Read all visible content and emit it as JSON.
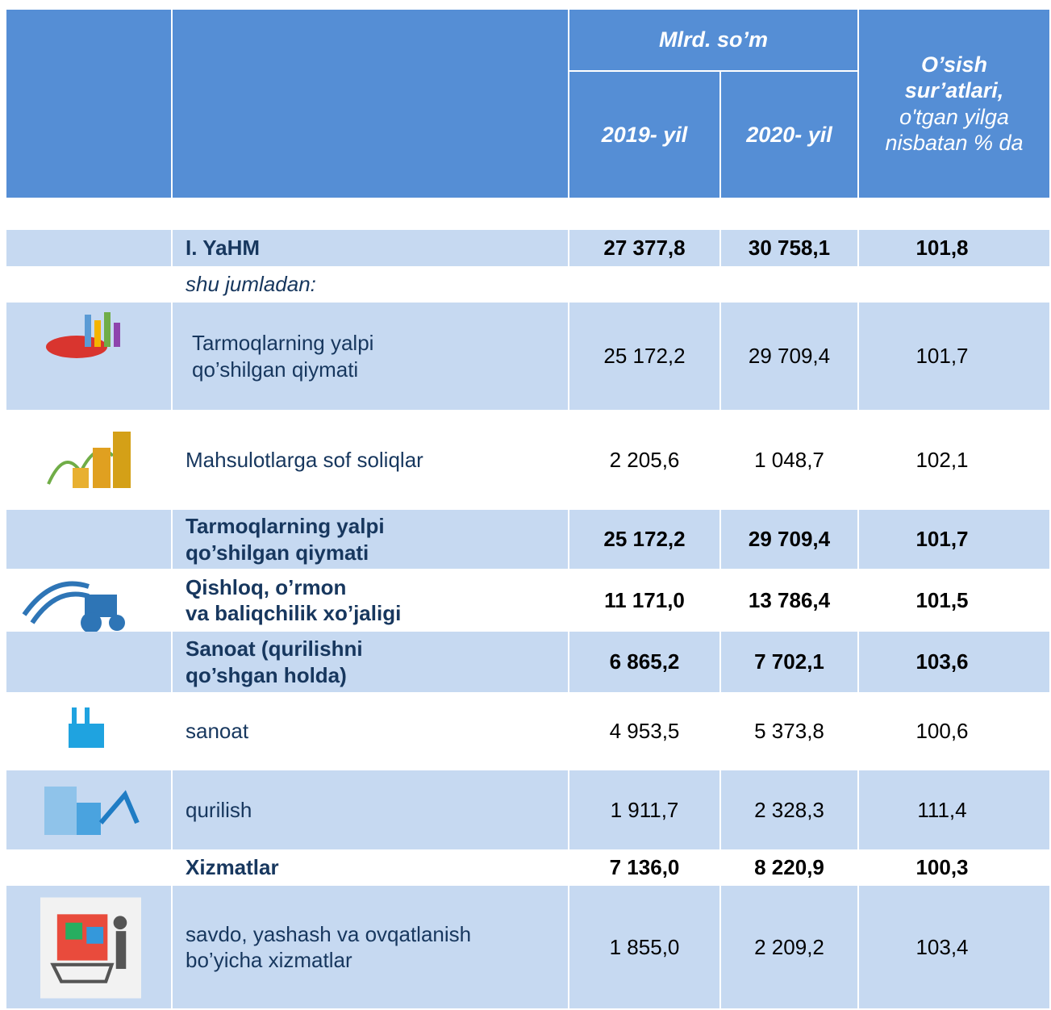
{
  "header": {
    "group": "Mlrd. so’m",
    "year1": "2019- yil",
    "year2": "2020- yil",
    "growth_title": "O’sish sur’atlari,",
    "growth_subtitle": "o'tgan yilga nisbatan % da"
  },
  "rows": [
    {
      "label": "I. YaHM",
      "v2019": "27 377,8",
      "v2020": "30 758,1",
      "growth": "101,8"
    },
    {
      "label": "shu jumladan:"
    },
    {
      "label": "Tarmoqlarning yalpi\nqo’shilgan qiymati",
      "v2019": "25 172,2",
      "v2020": "29 709,4",
      "growth": "101,7"
    },
    {
      "label": "Mahsulotlarga sof soliqlar",
      "v2019": "2 205,6",
      "v2020": "1 048,7",
      "growth": "102,1"
    },
    {
      "label": "Tarmoqlarning yalpi\nqo’shilgan qiymati",
      "v2019": "25 172,2",
      "v2020": "29 709,4",
      "growth": "101,7"
    },
    {
      "label": "Qishloq, o’rmon\nva baliqchilik xo’jaligi",
      "v2019": "11 171,0",
      "v2020": "13 786,4",
      "growth": "101,5"
    },
    {
      "label": "Sanoat (qurilishni\nqo’shgan holda)",
      "v2019": "6 865,2",
      "v2020": "7 702,1",
      "growth": "103,6"
    },
    {
      "label": "sanoat",
      "v2019": "4 953,5",
      "v2020": "5 373,8",
      "growth": "100,6"
    },
    {
      "label": "qurilish",
      "v2019": "1 911,7",
      "v2020": "2 328,3",
      "growth": "111,4"
    },
    {
      "label": "Xizmatlar",
      "v2019": "7 136,0",
      "v2020": "8 220,9",
      "growth": "100,3"
    },
    {
      "label": "savdo, yashash va ovqatlanish\nbo’yicha xizmatlar",
      "v2019": "1 855,0",
      "v2020": "2 209,2",
      "growth": "103,4"
    }
  ]
}
